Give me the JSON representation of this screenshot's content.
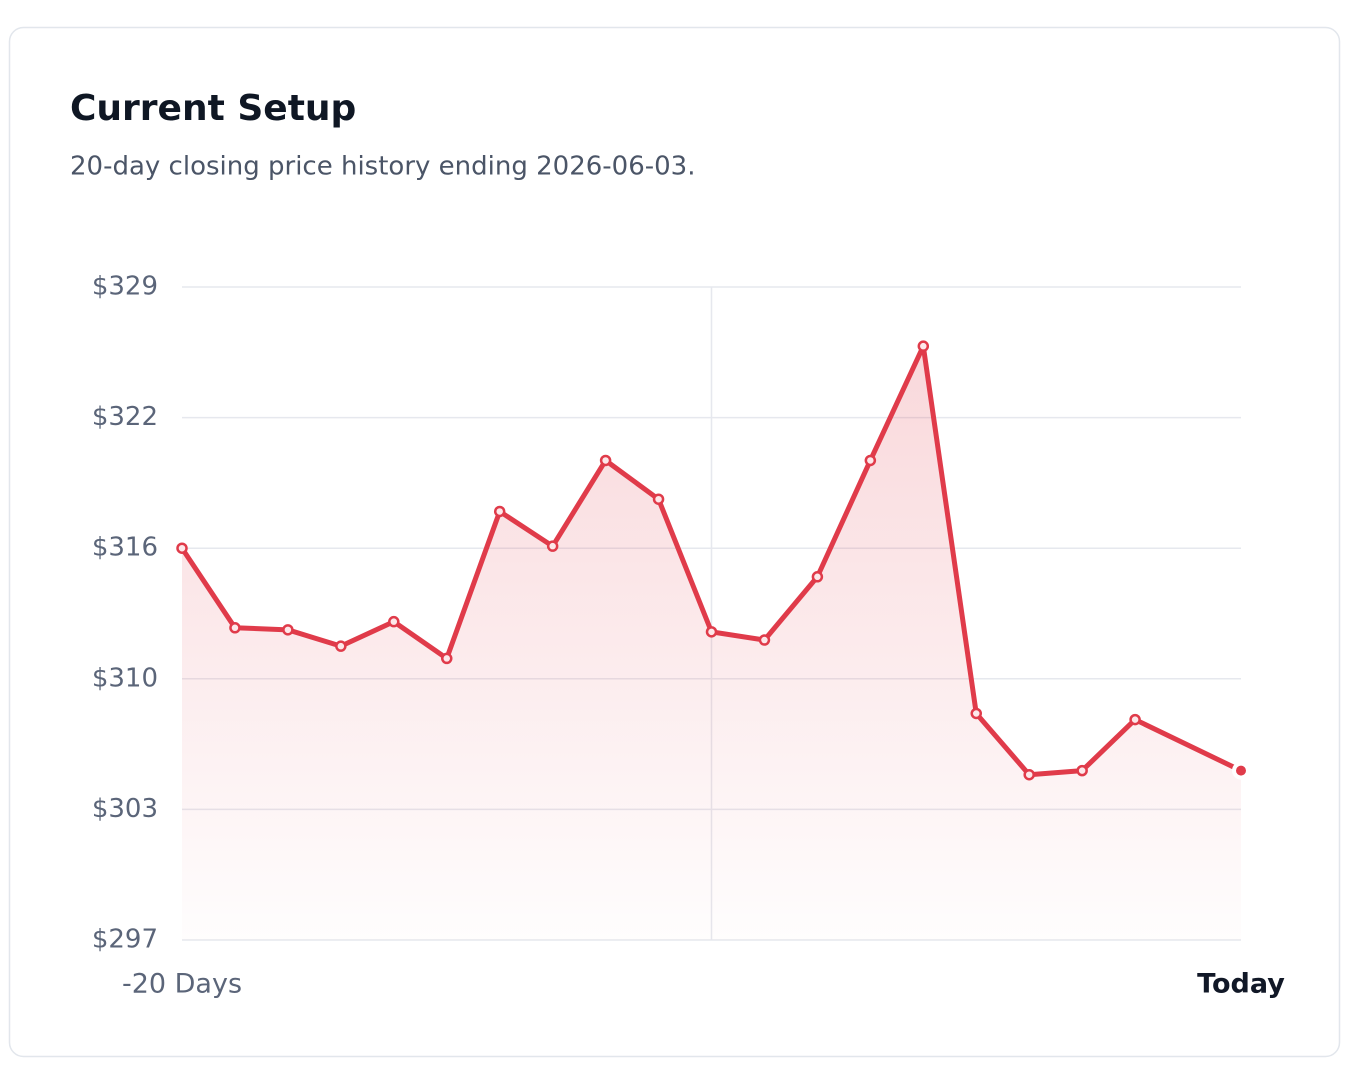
{
  "chart_data": {
    "type": "line",
    "title": "Current Setup",
    "subtitle": "20-day closing price history ending 2026-06-03.",
    "x": [
      -20,
      -19,
      -18,
      -17,
      -16,
      -15,
      -14,
      -13,
      -12,
      -11,
      -10,
      -9,
      -8,
      -7,
      -6,
      -5,
      -4,
      -3,
      -2,
      0
    ],
    "series": [
      {
        "color": "#e03b4a",
        "values": [
          316.0,
          312.1,
          312.0,
          311.2,
          312.4,
          310.6,
          317.8,
          316.1,
          320.3,
          318.4,
          311.9,
          311.5,
          314.6,
          320.3,
          325.9,
          307.9,
          304.9,
          305.1,
          307.6,
          305.1
        ]
      }
    ],
    "xlim": [
      -20,
      0
    ],
    "xticks": [
      {
        "value": -20,
        "label": "-20 Days"
      },
      {
        "value": 0,
        "label": "Today"
      }
    ],
    "xgrid": [
      -10
    ],
    "ylim": [
      296.8,
      328.8
    ],
    "yticks": [
      {
        "value": 296.8,
        "label": "$297"
      },
      {
        "value": 303.2,
        "label": "$303"
      },
      {
        "value": 309.6,
        "label": "$310"
      },
      {
        "value": 316.0,
        "label": "$316"
      },
      {
        "value": 322.4,
        "label": "$322"
      },
      {
        "value": 328.8,
        "label": "$329"
      }
    ],
    "grid": true
  }
}
